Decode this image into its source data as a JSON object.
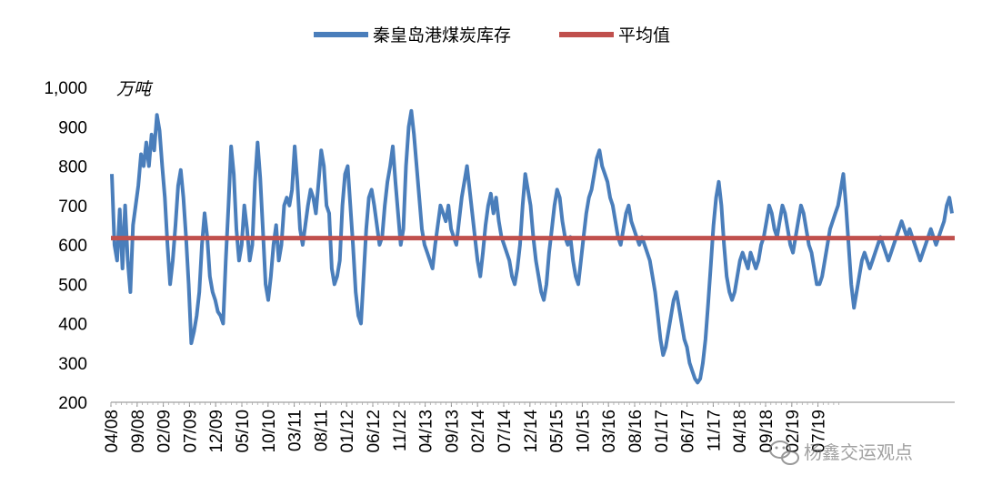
{
  "chart_data": {
    "type": "line",
    "ylabel": "万吨",
    "ylim": [
      200,
      1000
    ],
    "yticks": [
      "1,000",
      "900",
      "800",
      "700",
      "600",
      "500",
      "400",
      "300",
      "200"
    ],
    "ytick_values": [
      1000,
      900,
      800,
      700,
      600,
      500,
      400,
      300,
      200
    ],
    "xtick_labels": [
      "04/08",
      "09/08",
      "02/09",
      "07/09",
      "12/09",
      "05/10",
      "10/10",
      "03/11",
      "08/11",
      "01/12",
      "06/12",
      "11/12",
      "04/13",
      "09/13",
      "02/14",
      "07/14",
      "12/14",
      "05/15",
      "10/15",
      "03/16",
      "08/16",
      "01/17",
      "06/17",
      "11/17",
      "04/18",
      "09/18",
      "02/19",
      "07/19"
    ],
    "legend_position": "top-center",
    "grid": false,
    "series": [
      {
        "name": "秦皇岛港煤炭库存",
        "color": "#4a7ebb",
        "values": [
          780,
          600,
          560,
          690,
          540,
          700,
          560,
          480,
          650,
          700,
          750,
          830,
          800,
          860,
          800,
          880,
          840,
          930,
          890,
          800,
          720,
          600,
          500,
          560,
          650,
          750,
          790,
          720,
          620,
          500,
          350,
          380,
          420,
          480,
          600,
          680,
          620,
          520,
          480,
          460,
          430,
          420,
          400,
          560,
          700,
          850,
          780,
          640,
          560,
          600,
          700,
          640,
          560,
          600,
          760,
          860,
          770,
          640,
          500,
          460,
          520,
          600,
          650,
          560,
          600,
          700,
          720,
          700,
          740,
          850,
          760,
          640,
          600,
          650,
          700,
          740,
          720,
          680,
          760,
          840,
          800,
          700,
          680,
          540,
          500,
          520,
          560,
          700,
          780,
          800,
          700,
          600,
          480,
          420,
          400,
          520,
          640,
          720,
          740,
          700,
          650,
          600,
          620,
          700,
          760,
          800,
          850,
          760,
          680,
          600,
          640,
          800,
          900,
          940,
          880,
          800,
          720,
          640,
          600,
          580,
          560,
          540,
          600,
          650,
          700,
          680,
          660,
          700,
          640,
          620,
          600,
          660,
          720,
          760,
          800,
          740,
          680,
          620,
          560,
          520,
          580,
          650,
          700,
          730,
          680,
          720,
          660,
          620,
          600,
          580,
          560,
          520,
          500,
          540,
          600,
          700,
          780,
          740,
          700,
          620,
          560,
          520,
          480,
          460,
          500,
          580,
          640,
          700,
          740,
          720,
          660,
          620,
          600,
          620,
          560,
          520,
          500,
          560,
          620,
          680,
          720,
          740,
          780,
          820,
          840,
          800,
          780,
          760,
          720,
          700,
          660,
          620,
          600,
          640,
          680,
          700,
          660,
          640,
          620,
          600,
          620,
          600,
          580,
          560,
          520,
          480,
          420,
          360,
          320,
          340,
          380,
          420,
          460,
          480,
          440,
          400,
          360,
          340,
          300,
          280,
          260,
          250,
          260,
          300,
          360,
          450,
          550,
          650,
          720,
          760,
          700,
          600,
          520,
          480,
          460,
          480,
          520,
          560,
          580,
          560,
          540,
          580,
          560,
          540,
          560,
          600,
          620,
          660,
          700,
          680,
          640,
          620,
          660,
          700,
          680,
          640,
          600,
          580,
          620,
          660,
          700,
          680,
          640,
          600,
          580,
          540,
          500,
          500,
          520,
          560,
          600,
          640,
          660,
          680,
          700,
          740,
          780,
          700,
          600,
          500,
          440,
          480,
          520,
          560,
          580,
          560,
          540,
          560,
          580,
          600,
          620,
          600,
          580,
          560,
          580,
          600,
          620,
          640,
          660,
          640,
          620,
          640,
          620,
          600,
          580,
          560,
          580,
          600,
          620,
          640,
          620,
          600,
          620,
          640,
          660,
          700,
          720,
          680
        ]
      },
      {
        "name": "平均值",
        "color": "#c0504d",
        "values": [
          617
        ]
      }
    ]
  },
  "watermark": {
    "icon": "wechat-icon",
    "text": "杨鑫交运观点"
  }
}
